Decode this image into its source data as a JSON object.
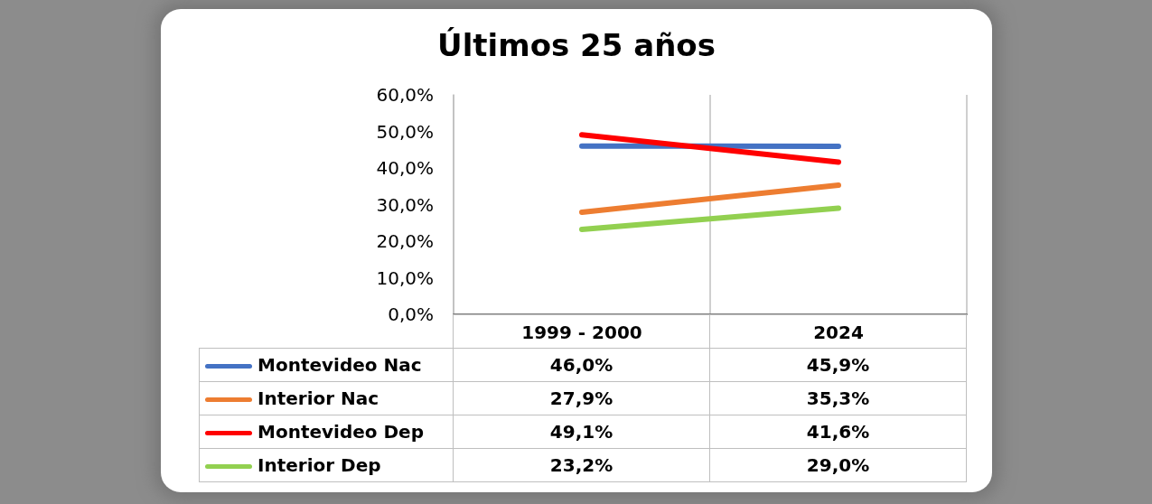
{
  "chart_data": {
    "type": "line",
    "title": "Últimos 25 años",
    "categories": [
      "1999 - 2000",
      "2024"
    ],
    "series": [
      {
        "name": "Montevideo Nac",
        "color": "#4472c4",
        "values": [
          46.0,
          45.9
        ],
        "value_labels": [
          "46,0%",
          "45,9%"
        ]
      },
      {
        "name": "Interior Nac",
        "color": "#ed7d31",
        "values": [
          27.9,
          35.3
        ],
        "value_labels": [
          "27,9%",
          "35,3%"
        ]
      },
      {
        "name": "Montevideo Dep",
        "color": "#ff0000",
        "values": [
          49.1,
          41.6
        ],
        "value_labels": [
          "49,1%",
          "41,6%"
        ]
      },
      {
        "name": "Interior Dep",
        "color": "#92d050",
        "values": [
          23.2,
          29.0
        ],
        "value_labels": [
          "23,2%",
          "29,0%"
        ]
      }
    ],
    "ylim": [
      0,
      60
    ],
    "yticks": [
      {
        "value": 0,
        "label": "0,0%"
      },
      {
        "value": 10,
        "label": "10,0%"
      },
      {
        "value": 20,
        "label": "20,0%"
      },
      {
        "value": 30,
        "label": "30,0%"
      },
      {
        "value": 40,
        "label": "40,0%"
      },
      {
        "value": 50,
        "label": "50,0%"
      },
      {
        "value": 60,
        "label": "60,0%"
      }
    ],
    "grid": "x",
    "legend": "bottom left",
    "marker": "none",
    "line_style": "solid"
  }
}
